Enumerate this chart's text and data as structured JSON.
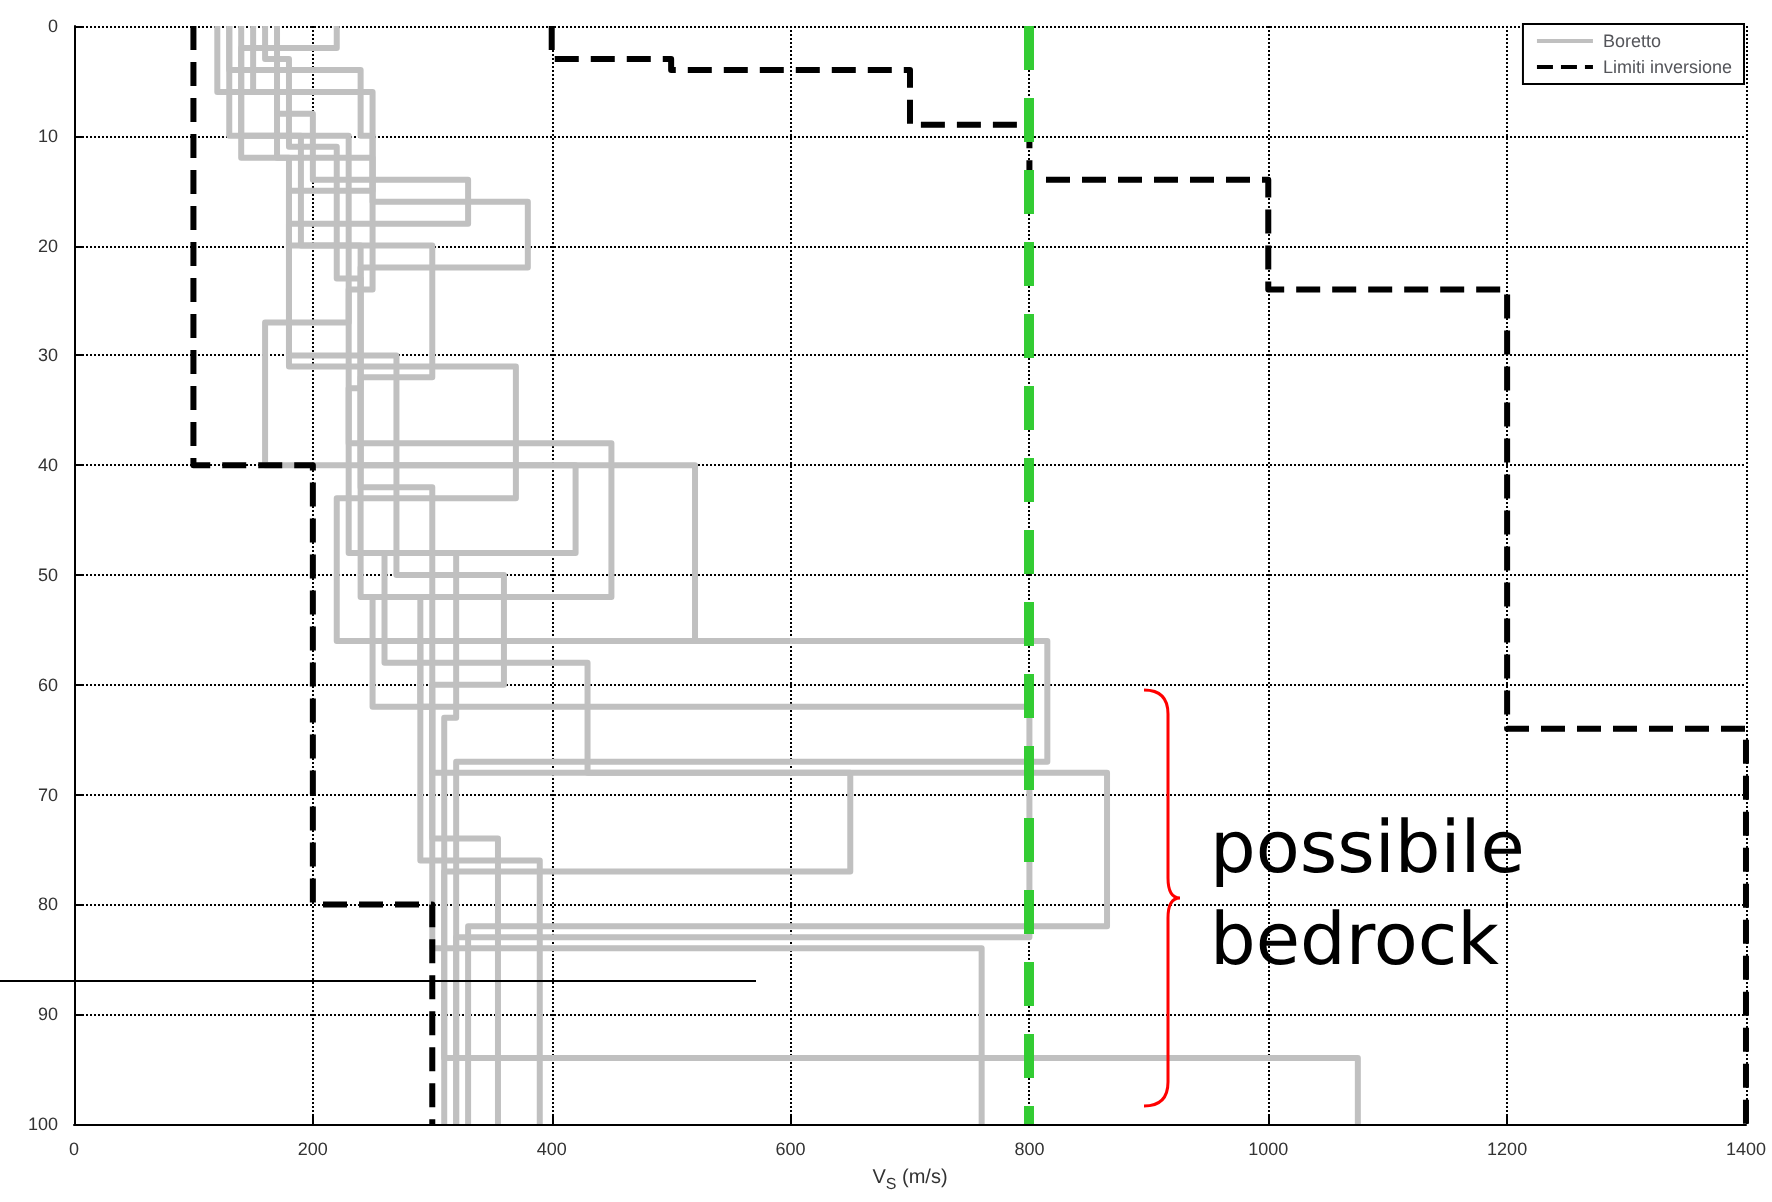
{
  "chart_data": {
    "type": "line",
    "xlabel": "V$_{S}$ (m/s)",
    "xlim": [
      0,
      1400
    ],
    "xticks": [
      0,
      200,
      400,
      600,
      800,
      1000,
      1200,
      1400
    ],
    "ylim": [
      100,
      0
    ],
    "yticks": [
      0,
      10,
      20,
      30,
      40,
      50,
      60,
      70,
      80,
      90,
      100
    ],
    "grid": true,
    "legend": "top right",
    "marker": "none",
    "annotations": [
      "possibile bedrock"
    ],
    "ref_lines": [
      {
        "axis": "x",
        "value": 800,
        "label": null,
        "color": "#33cc33",
        "line_style": "dashed"
      },
      {
        "axis": "y",
        "value": 87,
        "label": null,
        "color": "#000000",
        "line_style": "solid"
      }
    ],
    "series": [
      {
        "name": "Boretto",
        "color": "#c0c0c0",
        "line_style": "solid",
        "x": [
          150,
          150,
          170,
          170,
          180,
          180,
          240,
          240,
          230,
          230,
          320,
          320,
          310,
          310,
          1075,
          1075
        ],
        "values": [
          0,
          6,
          6,
          12,
          12,
          20,
          20,
          33,
          33,
          48,
          48,
          63,
          63,
          94,
          94,
          100
        ]
      },
      {
        "color": "#c0c0c0",
        "line_style": "solid",
        "x": [
          130,
          130,
          240,
          240,
          250,
          250,
          380,
          380,
          240,
          240,
          300,
          300,
          865,
          865,
          330,
          330
        ],
        "values": [
          0,
          4,
          4,
          10,
          10,
          16,
          16,
          22,
          22,
          42,
          42,
          68,
          68,
          82,
          82,
          100
        ]
      },
      {
        "color": "#c0c0c0",
        "line_style": "solid",
        "x": [
          170,
          170,
          200,
          200,
          330,
          330,
          180,
          180,
          370,
          370,
          220,
          220,
          815,
          815,
          320,
          320
        ],
        "values": [
          0,
          8,
          8,
          14,
          14,
          18,
          18,
          31,
          31,
          43,
          43,
          56,
          56,
          67,
          67,
          100
        ]
      },
      {
        "color": "#c0c0c0",
        "line_style": "solid",
        "x": [
          140,
          140,
          230,
          230,
          160,
          160,
          420,
          420,
          260,
          260,
          430,
          430,
          650,
          650,
          310,
          310
        ],
        "values": [
          0,
          10,
          10,
          27,
          27,
          40,
          40,
          48,
          48,
          58,
          58,
          68,
          68,
          77,
          77,
          100
        ]
      },
      {
        "color": "#c0c0c0",
        "line_style": "solid",
        "x": [
          220,
          220,
          140,
          140,
          250,
          250,
          230,
          230,
          450,
          450,
          250,
          250,
          300,
          300,
          760,
          760
        ],
        "values": [
          0,
          2,
          2,
          12,
          12,
          24,
          24,
          38,
          38,
          52,
          52,
          62,
          62,
          84,
          84,
          100
        ]
      },
      {
        "color": "#c0c0c0",
        "line_style": "solid",
        "x": [
          160,
          160,
          180,
          180,
          220,
          220,
          240,
          240,
          520,
          520,
          290,
          290,
          390,
          390
        ],
        "values": [
          0,
          3,
          3,
          11,
          11,
          23,
          23,
          40,
          40,
          56,
          56,
          76,
          76,
          100
        ]
      },
      {
        "color": "#c0c0c0",
        "line_style": "solid",
        "x": [
          120,
          120,
          250,
          250,
          180,
          180,
          270,
          270,
          360,
          360,
          300,
          300,
          355,
          355
        ],
        "values": [
          0,
          6,
          6,
          15,
          15,
          30,
          30,
          50,
          50,
          60,
          60,
          74,
          74,
          100
        ]
      },
      {
        "color": "#c0c0c0",
        "line_style": "solid",
        "x": [
          130,
          130,
          190,
          190,
          300,
          300,
          240,
          240,
          290,
          290,
          800,
          800,
          320,
          320
        ],
        "values": [
          0,
          10,
          10,
          20,
          20,
          32,
          32,
          52,
          52,
          62,
          62,
          83,
          83,
          100
        ]
      },
      {
        "name": "Limiti inversione",
        "color": "#000000",
        "line_style": "dashed",
        "x": [
          100,
          100,
          200,
          200,
          300,
          300
        ],
        "values": [
          0,
          40,
          40,
          80,
          80,
          100
        ]
      },
      {
        "color": "#000000",
        "line_style": "dashed",
        "x": [
          400,
          400,
          500,
          500,
          700,
          700,
          800,
          800,
          1000,
          1000,
          1200,
          1200,
          1400,
          1400
        ],
        "values": [
          0,
          3,
          3,
          4,
          4,
          9,
          9,
          14,
          14,
          24,
          24,
          64,
          64,
          100
        ]
      }
    ]
  }
}
